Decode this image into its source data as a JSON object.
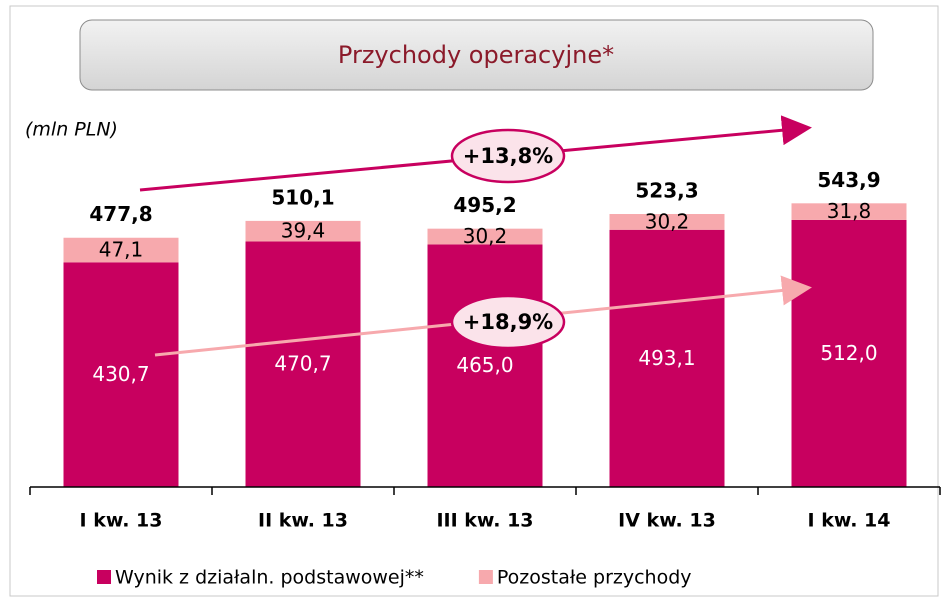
{
  "chart_data": {
    "type": "stacked_bar",
    "title": "Przychody operacyjne*",
    "unit_label": "(mln PLN)",
    "categories": [
      "I kw. 13",
      "II kw. 13",
      "III kw. 13",
      "IV kw. 13",
      "I kw. 14"
    ],
    "series": [
      {
        "name": "Wynik z działaln. podstawowej**",
        "color": "#c8005f",
        "values": [
          430.7,
          470.7,
          465.0,
          493.1,
          512.0
        ],
        "value_labels": [
          "430,7",
          "470,7",
          "465,0",
          "493,1",
          "512,0"
        ]
      },
      {
        "name": "Pozostałe przychody",
        "color": "#f7a9ad",
        "values": [
          47.1,
          39.4,
          30.2,
          30.2,
          31.8
        ],
        "value_labels": [
          "47,1",
          "39,4",
          "30,2",
          "30,2",
          "31,8"
        ]
      }
    ],
    "totals": [
      477.8,
      510.1,
      495.2,
      523.3,
      543.9
    ],
    "total_labels": [
      "477,8",
      "510,1",
      "495,2",
      "523,3",
      "543,9"
    ],
    "annotations": [
      "+13,8%",
      "+18,9%"
    ],
    "ylim": [
      0,
      600
    ]
  }
}
